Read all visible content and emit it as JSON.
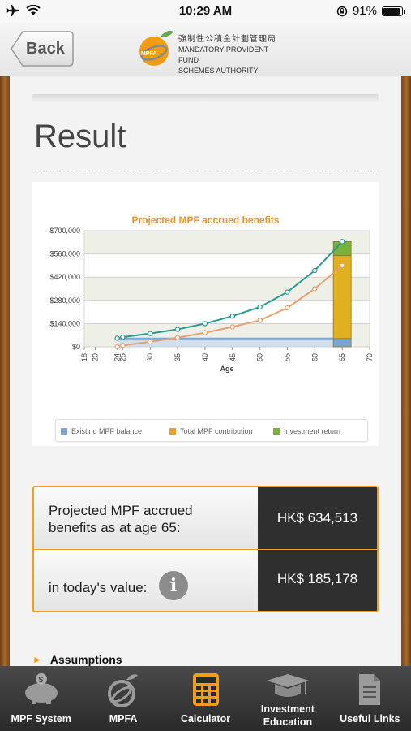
{
  "status_bar": {
    "time": "10:29 AM",
    "battery": "91%"
  },
  "header": {
    "back_label": "Back",
    "logo_zh": "強制性公積金計劃管理局",
    "logo_en_1": "MANDATORY PROVIDENT FUND",
    "logo_en_2": "SCHEMES AUTHORITY"
  },
  "page": {
    "title": "Result"
  },
  "chart_data": {
    "type": "line",
    "title": "Projected MPF accrued benefits",
    "xlabel": "Age",
    "ylabel": "",
    "x_ticks": [
      18,
      20,
      24,
      25,
      30,
      35,
      40,
      45,
      50,
      55,
      60,
      65,
      70
    ],
    "y_ticks": [
      "$0",
      "$140,000",
      "$280,000",
      "$420,000",
      "$560,000",
      "$700,000"
    ],
    "ylim": [
      0,
      700000
    ],
    "x": [
      24,
      25,
      30,
      35,
      40,
      45,
      50,
      55,
      60,
      65
    ],
    "series": [
      {
        "name": "Existing MPF balance",
        "type": "area",
        "color": "#7aa6d6",
        "values": [
          50000,
          50000,
          50000,
          50000,
          50000,
          50000,
          50000,
          50000,
          50000,
          50000
        ]
      },
      {
        "name": "Total MPF contribution",
        "type": "line",
        "color": "#e8a070",
        "values": [
          0,
          8000,
          30000,
          55000,
          85000,
          120000,
          160000,
          235000,
          350000,
          490000
        ]
      },
      {
        "name": "Investment return",
        "type": "line",
        "color": "#2a9a8f",
        "values": [
          52000,
          58000,
          80000,
          105000,
          140000,
          185000,
          240000,
          330000,
          460000,
          634513
        ]
      }
    ],
    "highlight_bar": {
      "x": 65,
      "segments": [
        50000,
        500000,
        84513
      ]
    },
    "legend_position": "bottom",
    "grid": true
  },
  "results": {
    "row1_label": "Projected MPF accrued benefits as at age 65:",
    "row1_value": "HK$ 634,513",
    "row2_label": "in today's value:",
    "row2_value": "HK$ 185,178",
    "info_glyph": "i"
  },
  "assumptions": {
    "label": "Assumptions"
  },
  "tabs": [
    {
      "label": "MPF System",
      "icon": "piggy-bank-icon"
    },
    {
      "label": "MPFA",
      "icon": "mpfa-logo-icon"
    },
    {
      "label": "Calculator",
      "icon": "calculator-icon",
      "active": true
    },
    {
      "label": "Investment Education",
      "icon": "graduation-cap-icon"
    },
    {
      "label": "Useful Links",
      "icon": "document-icon"
    }
  ]
}
